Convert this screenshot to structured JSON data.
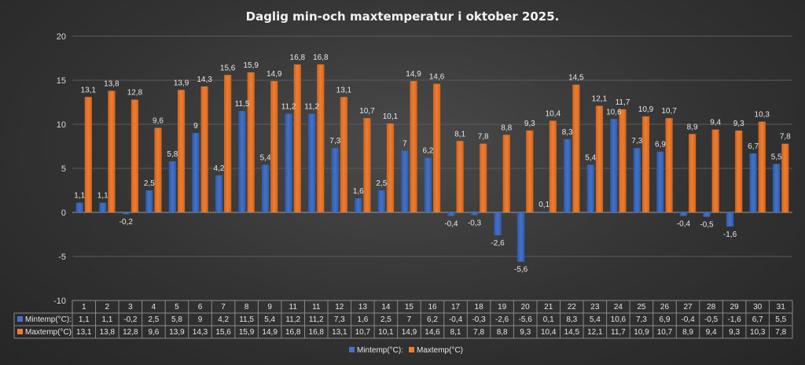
{
  "chart_data": {
    "type": "bar",
    "title": "Daglig min-och maxtemperatur i oktober 2025.",
    "categories": [
      "1",
      "2",
      "3",
      "4",
      "5",
      "6",
      "7",
      "8",
      "9",
      "11",
      "11",
      "12",
      "13",
      "14",
      "15",
      "16",
      "17",
      "18",
      "19",
      "20",
      "21",
      "22",
      "23",
      "24",
      "25",
      "26",
      "27",
      "28",
      "29",
      "30",
      "31"
    ],
    "series": [
      {
        "name": "Mintemp(°C):",
        "color": "#4472c4",
        "values": [
          1.1,
          1.1,
          -0.2,
          2.5,
          5.8,
          9,
          4.2,
          11.5,
          5.4,
          11.2,
          11.2,
          7.3,
          1.6,
          2.5,
          7,
          6.2,
          -0.4,
          -0.3,
          -2.6,
          -5.6,
          0.1,
          8.3,
          5.4,
          10.6,
          7.3,
          6.9,
          -0.4,
          -0.5,
          -1.6,
          6.7,
          5.5
        ]
      },
      {
        "name": "Maxtemp(°C)",
        "color": "#ed7d31",
        "values": [
          13.1,
          13.8,
          12.8,
          9.6,
          13.9,
          14.3,
          15.6,
          15.9,
          14.9,
          16.8,
          16.8,
          13.1,
          10.7,
          10.1,
          14.9,
          14.6,
          8.1,
          7.8,
          8.8,
          9.3,
          10.4,
          14.5,
          12.1,
          11.7,
          10.9,
          10.7,
          8.9,
          9.4,
          9.3,
          10.3,
          7.8
        ]
      }
    ],
    "data_labels": {
      "min": [
        "1,1",
        "1,1",
        "-0,2",
        "2,5",
        "5,8",
        "9",
        "4,2",
        "11,5",
        "5,4",
        "11,2",
        "11,2",
        "7,3",
        "1,6",
        "2,5",
        "7",
        "6,2",
        "-0,4",
        "-0,3",
        "-2,6",
        "-5,6",
        "0,1",
        "8,3",
        "5,4",
        "10,6",
        "7,3",
        "6,9",
        "-0,4",
        "-0,5",
        "-1,6",
        "6,7",
        "5,5"
      ],
      "max": [
        "13,1",
        "13,8",
        "12,8",
        "9,6",
        "13,9",
        "14,3",
        "15,6",
        "15,9",
        "14,9",
        "16,8",
        "16,8",
        "13,1",
        "10,7",
        "10,1",
        "14,9",
        "14,6",
        "8,1",
        "7,8",
        "8,8",
        "9,3",
        "10,4",
        "14,5",
        "12,1",
        "11,7",
        "10,9",
        "10,7",
        "8,9",
        "9,4",
        "9,3",
        "10,3",
        "7,8"
      ]
    },
    "table_row_labels": [
      "Mintemp(°C):",
      "Maxtemp(°C)"
    ],
    "legend": [
      "Mintemp(°C):",
      "Maxtemp(°C)"
    ],
    "legend_position": "bottom",
    "ylim": [
      -10,
      20
    ],
    "yticks": [
      "-10",
      "-5",
      "0",
      "5",
      "10",
      "15",
      "20"
    ],
    "grid": true,
    "data_table": true
  }
}
